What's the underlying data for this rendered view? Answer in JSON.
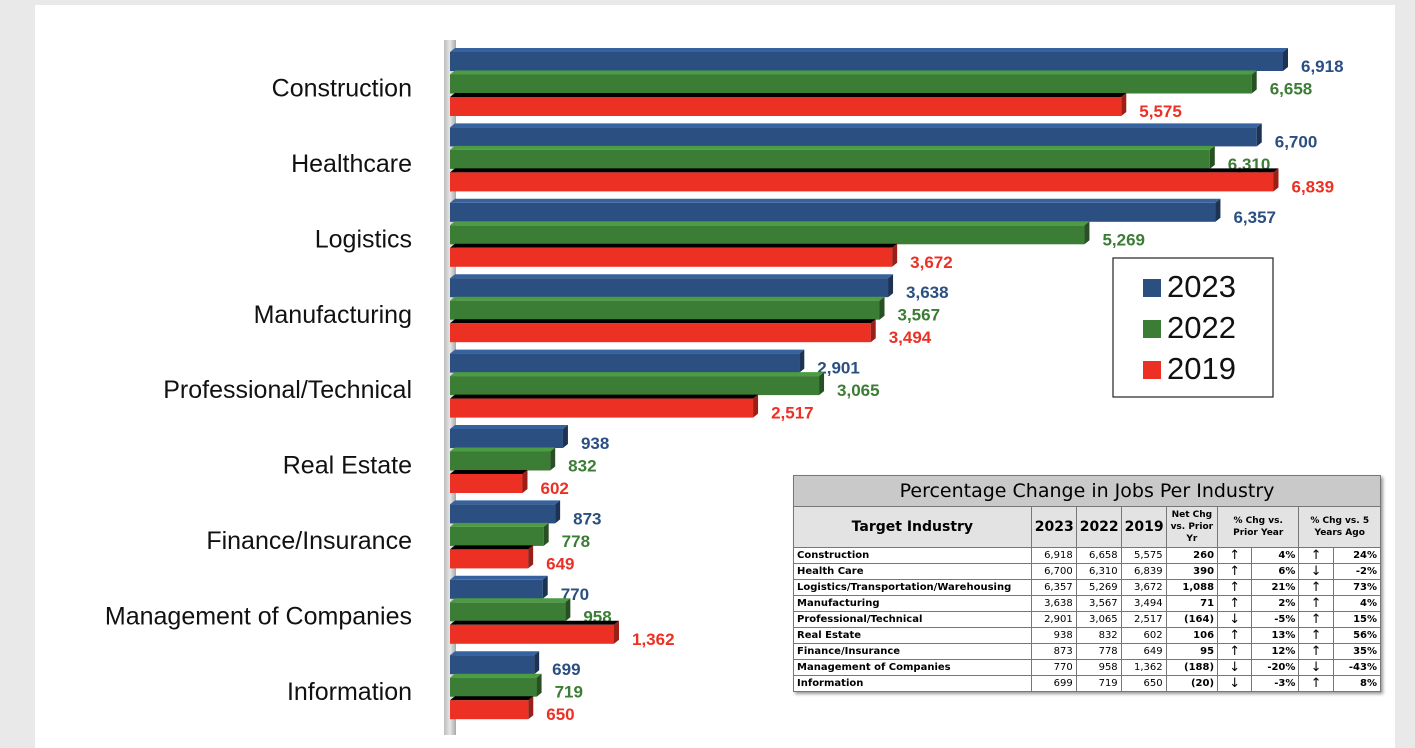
{
  "chart_data": {
    "type": "bar",
    "orientation": "horizontal",
    "categories": [
      "Construction",
      "Healthcare",
      "Logistics",
      "Manufacturing",
      "Professional/Technical",
      "Real Estate",
      "Finance/Insurance",
      "Management of Companies",
      "Information"
    ],
    "series": [
      {
        "name": "2023",
        "color": "#2b4f80",
        "values": [
          6918,
          6700,
          6357,
          3638,
          2901,
          938,
          873,
          770,
          699
        ],
        "value_labels": [
          "6,918",
          "6,700",
          "6,357",
          "3,638",
          "2,901",
          "938",
          "873",
          "770",
          "699"
        ]
      },
      {
        "name": "2022",
        "color": "#3c7d35",
        "values": [
          6658,
          6310,
          5269,
          3567,
          3065,
          832,
          778,
          958,
          719
        ],
        "value_labels": [
          "6,658",
          "6,310",
          "5,269",
          "3,567",
          "3,065",
          "832",
          "778",
          "958",
          "719"
        ]
      },
      {
        "name": "2019",
        "color": "#ec3024",
        "values": [
          5575,
          6839,
          3672,
          3494,
          2517,
          602,
          649,
          1362,
          650
        ],
        "value_labels": [
          "5,575",
          "6,839",
          "3,672",
          "3,494",
          "2,517",
          "602",
          "649",
          "1,362",
          "650"
        ]
      }
    ],
    "legend": "right"
  },
  "table": {
    "title": "Percentage Change in Jobs Per Industry",
    "header": [
      "Target Industry",
      "2023",
      "2022",
      "2019",
      "Net Chg vs. Prior Yr",
      "% Chg vs. Prior Year",
      "% Chg vs. 5 Years Ago"
    ],
    "rows": [
      [
        "Construction",
        "6,918",
        "6,658",
        "5,575",
        "260",
        "↑",
        "4%",
        "↑",
        "24%"
      ],
      [
        "Health Care",
        "6,700",
        "6,310",
        "6,839",
        "390",
        "↑",
        "6%",
        "↓",
        "-2%"
      ],
      [
        "Logistics/Transportation/Warehousing",
        "6,357",
        "5,269",
        "3,672",
        "1,088",
        "↑",
        "21%",
        "↑",
        "73%"
      ],
      [
        "Manufacturing",
        "3,638",
        "3,567",
        "3,494",
        "71",
        "↑",
        "2%",
        "↑",
        "4%"
      ],
      [
        "Professional/Technical",
        "2,901",
        "3,065",
        "2,517",
        "(164)",
        "↓",
        "-5%",
        "↑",
        "15%"
      ],
      [
        "Real Estate",
        "938",
        "832",
        "602",
        "106",
        "↑",
        "13%",
        "↑",
        "56%"
      ],
      [
        "Finance/Insurance",
        "873",
        "778",
        "649",
        "95",
        "↑",
        "12%",
        "↑",
        "35%"
      ],
      [
        "Management of Companies",
        "770",
        "958",
        "1,362",
        "(188)",
        "↓",
        "-20%",
        "↓",
        "-43%"
      ],
      [
        "Information",
        "699",
        "719",
        "650",
        "(20)",
        "↓",
        "-3%",
        "↑",
        "8%"
      ]
    ]
  }
}
